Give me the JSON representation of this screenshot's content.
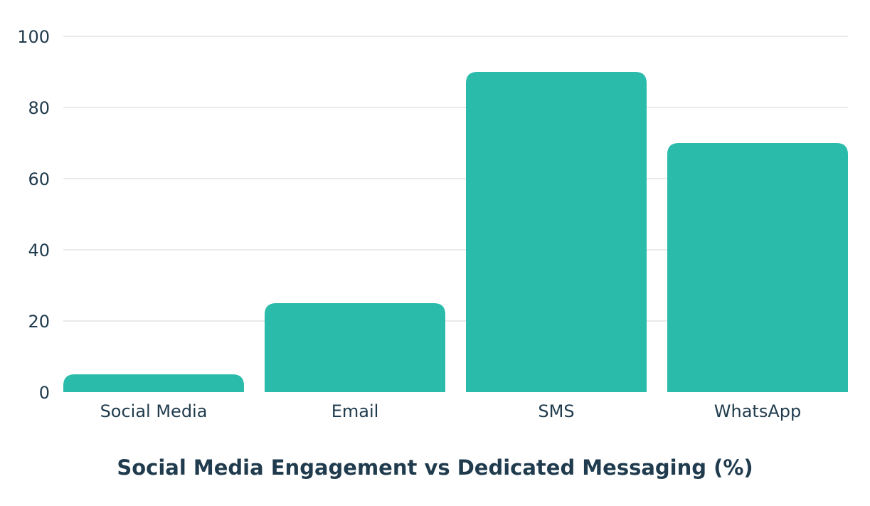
{
  "chart_data": {
    "type": "bar",
    "title": "Social Media Engagement vs Dedicated Messaging (%)",
    "xlabel": "",
    "ylabel": "",
    "categories": [
      "Social Media",
      "Email",
      "SMS",
      "WhatsApp"
    ],
    "values": [
      5,
      25,
      90,
      70
    ],
    "ylim": [
      0,
      100
    ],
    "yticks": [
      0,
      20,
      40,
      60,
      80,
      100
    ],
    "grid": true,
    "legend": "none",
    "colors": {
      "bar": "#2bbbab",
      "grid": "#d6d6d6",
      "text": "#1f3b4d"
    }
  }
}
